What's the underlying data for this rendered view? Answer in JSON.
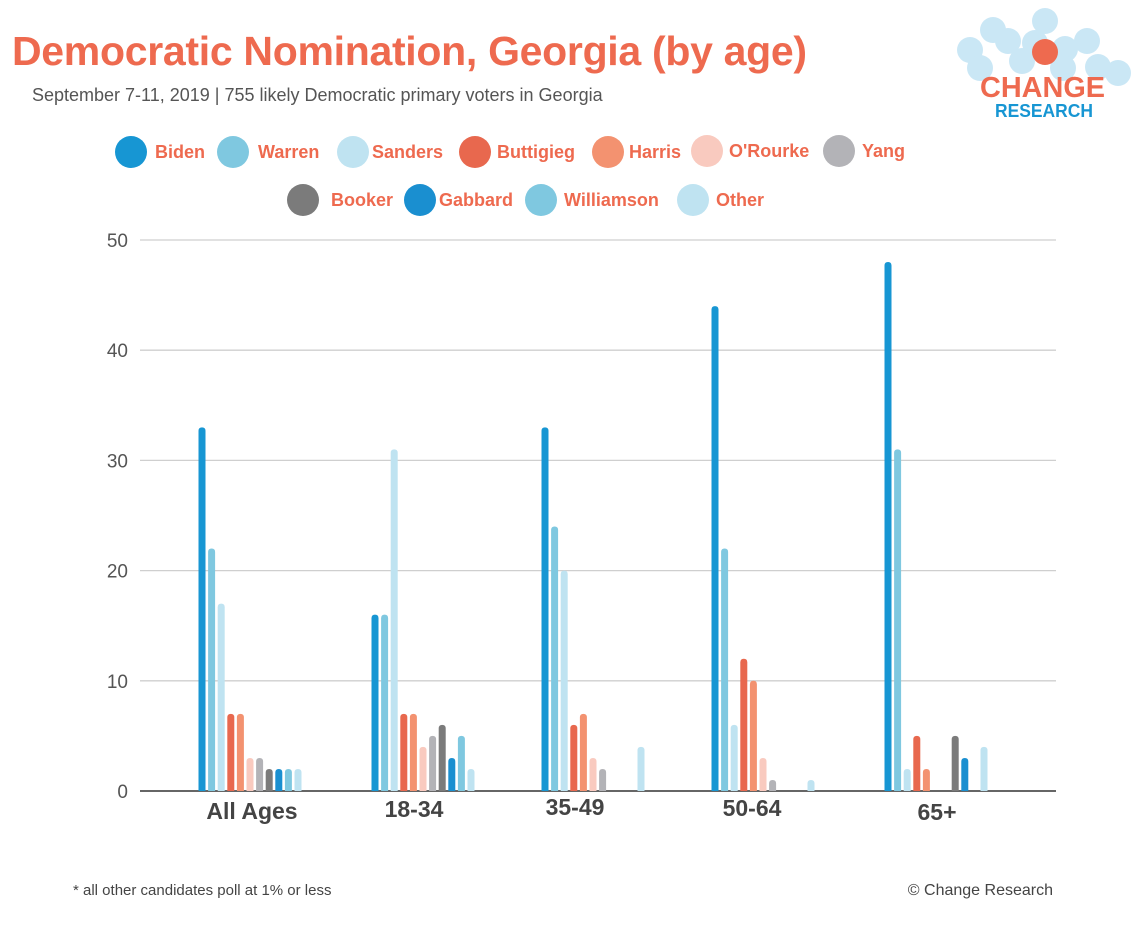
{
  "header": {
    "title": "Democratic Nomination, Georgia (by age)",
    "subtitle": "September 7-11, 2019  | 755 likely Democratic primary voters in Georgia"
  },
  "logo": {
    "line1": "CHANGE",
    "line2": "RESEARCH"
  },
  "footer": {
    "note": "* all other candidates poll at 1% or less",
    "copyright": "© Change Research"
  },
  "chart_data": {
    "type": "bar",
    "title": "Democratic Nomination, Georgia (by age)",
    "categories": [
      "All Ages",
      "18-34",
      "35-49",
      "50-64",
      "65+"
    ],
    "ylim": [
      0,
      50
    ],
    "yticks": [
      0,
      10,
      20,
      30,
      40,
      50
    ],
    "grid": true,
    "legend_position": "top",
    "series": [
      {
        "name": "Biden",
        "color": "#1796d3",
        "values": [
          33,
          16,
          33,
          44,
          48
        ]
      },
      {
        "name": "Warren",
        "color": "#7fc8e0",
        "values": [
          22,
          16,
          24,
          22,
          31
        ]
      },
      {
        "name": "Sanders",
        "color": "#bfe3f1",
        "values": [
          17,
          31,
          20,
          6,
          2
        ]
      },
      {
        "name": "Buttigieg",
        "color": "#e8684e",
        "values": [
          7,
          7,
          6,
          12,
          5
        ]
      },
      {
        "name": "Harris",
        "color": "#f39270",
        "values": [
          7,
          7,
          7,
          10,
          2
        ]
      },
      {
        "name": "O'Rourke",
        "color": "#f9cabf",
        "values": [
          3,
          4,
          3,
          3,
          0
        ]
      },
      {
        "name": "Yang",
        "color": "#b3b3b7",
        "values": [
          3,
          5,
          2,
          1,
          0
        ]
      },
      {
        "name": "Booker",
        "color": "#7b7b7b",
        "values": [
          2,
          6,
          0,
          0,
          5
        ]
      },
      {
        "name": "Gabbard",
        "color": "#1a8fd0",
        "values": [
          2,
          3,
          0,
          0,
          3
        ]
      },
      {
        "name": "Williamson",
        "color": "#7fc8e0",
        "values": [
          2,
          5,
          0,
          0,
          0
        ]
      },
      {
        "name": "Other",
        "color": "#bfe3f1",
        "values": [
          2,
          2,
          4,
          1,
          4
        ]
      }
    ]
  }
}
